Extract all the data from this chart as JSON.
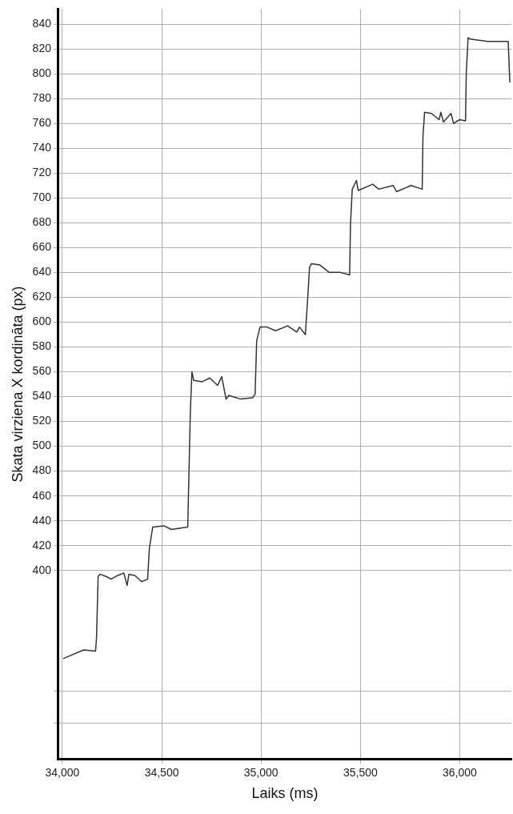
{
  "chart_data": {
    "type": "line",
    "xlabel": "Laiks (ms)",
    "ylabel": "Skata virziena X kordināta (px)",
    "xlim": [
      33980,
      36260
    ],
    "xticks": [
      {
        "value": 34000,
        "label": "34,000"
      },
      {
        "value": 34500,
        "label": "34,500"
      },
      {
        "value": 35000,
        "label": "35,000"
      },
      {
        "value": 35500,
        "label": "35,500"
      },
      {
        "value": 36000,
        "label": "36,000"
      }
    ],
    "ylim": [
      248,
      852
    ],
    "yticks": [
      {
        "value": 277,
        "label": null
      },
      {
        "value": 303,
        "label": null
      },
      400,
      420,
      440,
      460,
      480,
      500,
      520,
      540,
      560,
      580,
      600,
      620,
      640,
      660,
      680,
      700,
      720,
      740,
      760,
      780,
      800,
      820,
      840
    ],
    "grid": true,
    "marker": "none",
    "line_style": "solid",
    "series": [
      {
        "color": "#333333",
        "x": [
          34004,
          34107,
          34167,
          34172,
          34180,
          34189,
          34223,
          34245,
          34279,
          34309,
          34326,
          34335,
          34365,
          34399,
          34429,
          34438,
          34455,
          34511,
          34549,
          34631,
          34644,
          34652,
          34661,
          34704,
          34742,
          34781,
          34802,
          34824,
          34837,
          34897,
          34957,
          34970,
          34978,
          34995,
          35030,
          35073,
          35133,
          35180,
          35193,
          35223,
          35236,
          35244,
          35253,
          35296,
          35343,
          35399,
          35446,
          35450,
          35459,
          35480,
          35489,
          35562,
          35592,
          35665,
          35682,
          35755,
          35811,
          35815,
          35823,
          35858,
          35896,
          35905,
          35918,
          35956,
          35969,
          35999,
          36029,
          36033,
          36042,
          36051,
          36141,
          36154,
          36244,
          36252
        ],
        "values": [
          329,
          336,
          335,
          346,
          395,
          397,
          395,
          393,
          396,
          398,
          388,
          397,
          396,
          391,
          393,
          418,
          435,
          436,
          433,
          435,
          527,
          560,
          553,
          552,
          555,
          549,
          556,
          538,
          541,
          538,
          539,
          542,
          585,
          596,
          596,
          593,
          597,
          592,
          596,
          590,
          622,
          644,
          647,
          646,
          640,
          640,
          638,
          678,
          707,
          714,
          706,
          711,
          707,
          710,
          705,
          710,
          707,
          750,
          769,
          768,
          763,
          769,
          761,
          768,
          760,
          763,
          762,
          801,
          829,
          828,
          826,
          826,
          826,
          793
        ]
      }
    ]
  }
}
